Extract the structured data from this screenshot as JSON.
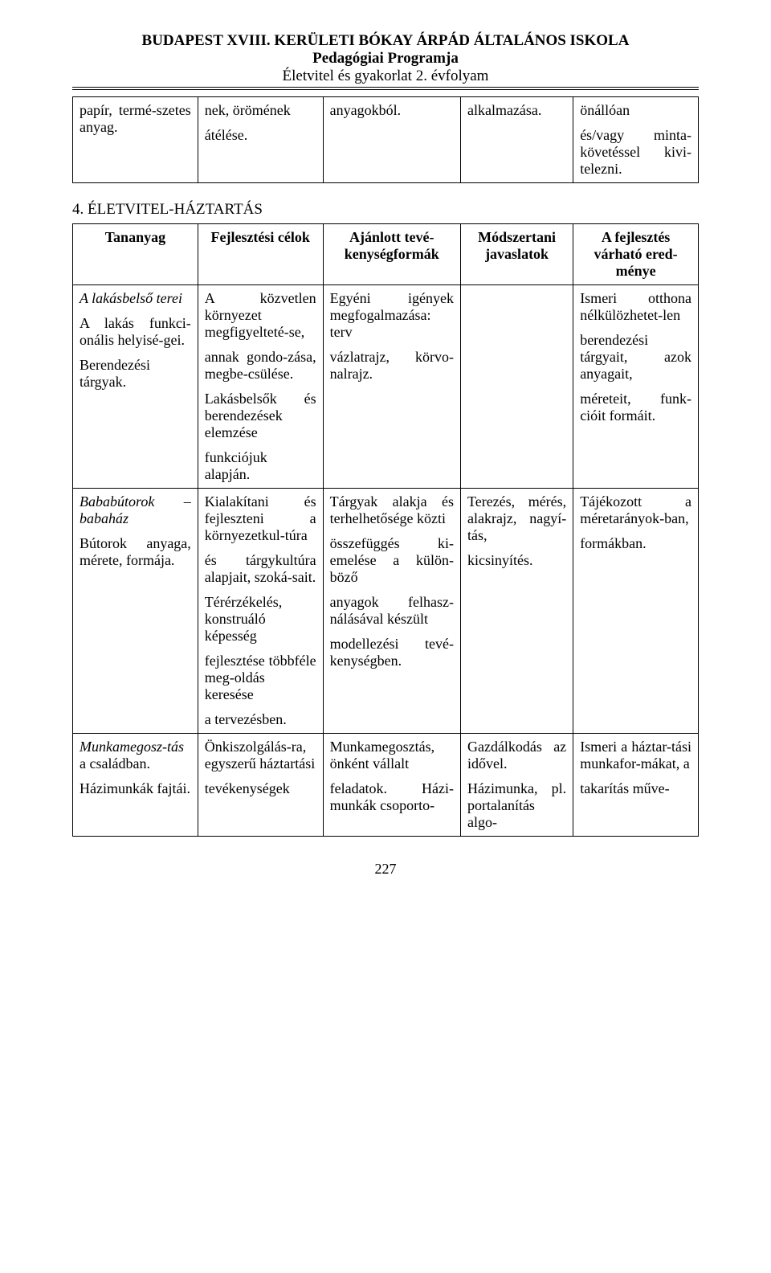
{
  "header": {
    "title": "BUDAPEST XVIII. KERÜLETI BÓKAY ÁRPÁD ÁLTALÁNOS ISKOLA",
    "sub1": "Pedagógiai Programja",
    "sub2": "Életvitel és gyakorlat 2. évfolyam"
  },
  "table1": {
    "r1c1a": "papír, termé-szetes anyag.",
    "r1c2a": "nek, örömének",
    "r1c2b": "átélése.",
    "r1c3a": "anyagokból.",
    "r1c4a": "alkalmazása.",
    "r1c5a": "önállóan",
    "r1c5b": "és/vagy minta-követéssel kivi-telezni."
  },
  "section_heading": "4. ÉLETVITEL-HÁZTARTÁS",
  "table2": {
    "headers": {
      "h1": "Tananyag",
      "h2": "Fejlesztési célok",
      "h3": "Ajánlott tevé-kenységformák",
      "h4": "Módszertani javaslatok",
      "h5": "A fejlesztés várható ered-ménye"
    },
    "rowA": {
      "c1_p1_it": "A lakásbelső terei",
      "c1_p2": "A lakás funkci-onális helyisé-gei.",
      "c1_p3": "Berendezési tárgyak.",
      "c2_p1": "A közvetlen környezet megfigyelteté-se,",
      "c2_p2": "annak gondo-zása, megbe-csülése.",
      "c2_p3": "Lakásbelsők és berendezések elemzése",
      "c2_p4": "funkciójuk alapján.",
      "c3_p1": "Egyéni igények megfogalmazása: terv",
      "c3_p2": "vázlatrajz, körvo-nalrajz.",
      "c4": "",
      "c5_p1": "Ismeri otthona nélkülözhetet-len",
      "c5_p2": "berendezési tárgyait, azok anyagait,",
      "c5_p3": "méreteit, funk-cióit formáit."
    },
    "rowB": {
      "c1_p1_it": "Bababútorok – babaház",
      "c1_p2": "Bútorok anyaga, mérete, formája.",
      "c2_p1": "Kialakítani és fejleszteni a környezetkul-túra",
      "c2_p2": "és tárgykultúra alapjait, szoká-sait.",
      "c2_p3": "Térérzékelés, konstruáló képesség",
      "c2_p4": "fejlesztése többféle meg-oldás keresése",
      "c2_p5": "a tervezésben.",
      "c3_p1": "Tárgyak alakja és terhelhetősége közti",
      "c3_p2": "összefüggés ki-emelése a külön-böző",
      "c3_p3": "anyagok felhasz-nálásával készült",
      "c3_p4": "modellezési tevé-kenységben.",
      "c4_p1": "Terezés, mérés, alakrajz, nagyí-tás,",
      "c4_p2": "kicsinyítés.",
      "c5_p1": "Tájékozott a méretarányok-ban,",
      "c5_p2": "formákban."
    },
    "rowC": {
      "c1_p1_it": "Munkamegosz-tás",
      "c1_p1_rest": " a családban.",
      "c1_p2": "Házimunkák fajtái.",
      "c2_p1": "Önkiszolgálás-ra, egyszerű háztartási",
      "c2_p2": "tevékenységek",
      "c3_p1": "Munkamegosztás, önként vállalt",
      "c3_p2": "feladatok. Házi-munkák csoporto-",
      "c4_p1": "Gazdálkodás az idővel.",
      "c4_p2": "Házimunka, pl. portalanítás algo-",
      "c5_p1": "Ismeri a háztar-tási munkafor-mákat, a",
      "c5_p2": "takarítás műve-"
    }
  },
  "pagenum": "227"
}
